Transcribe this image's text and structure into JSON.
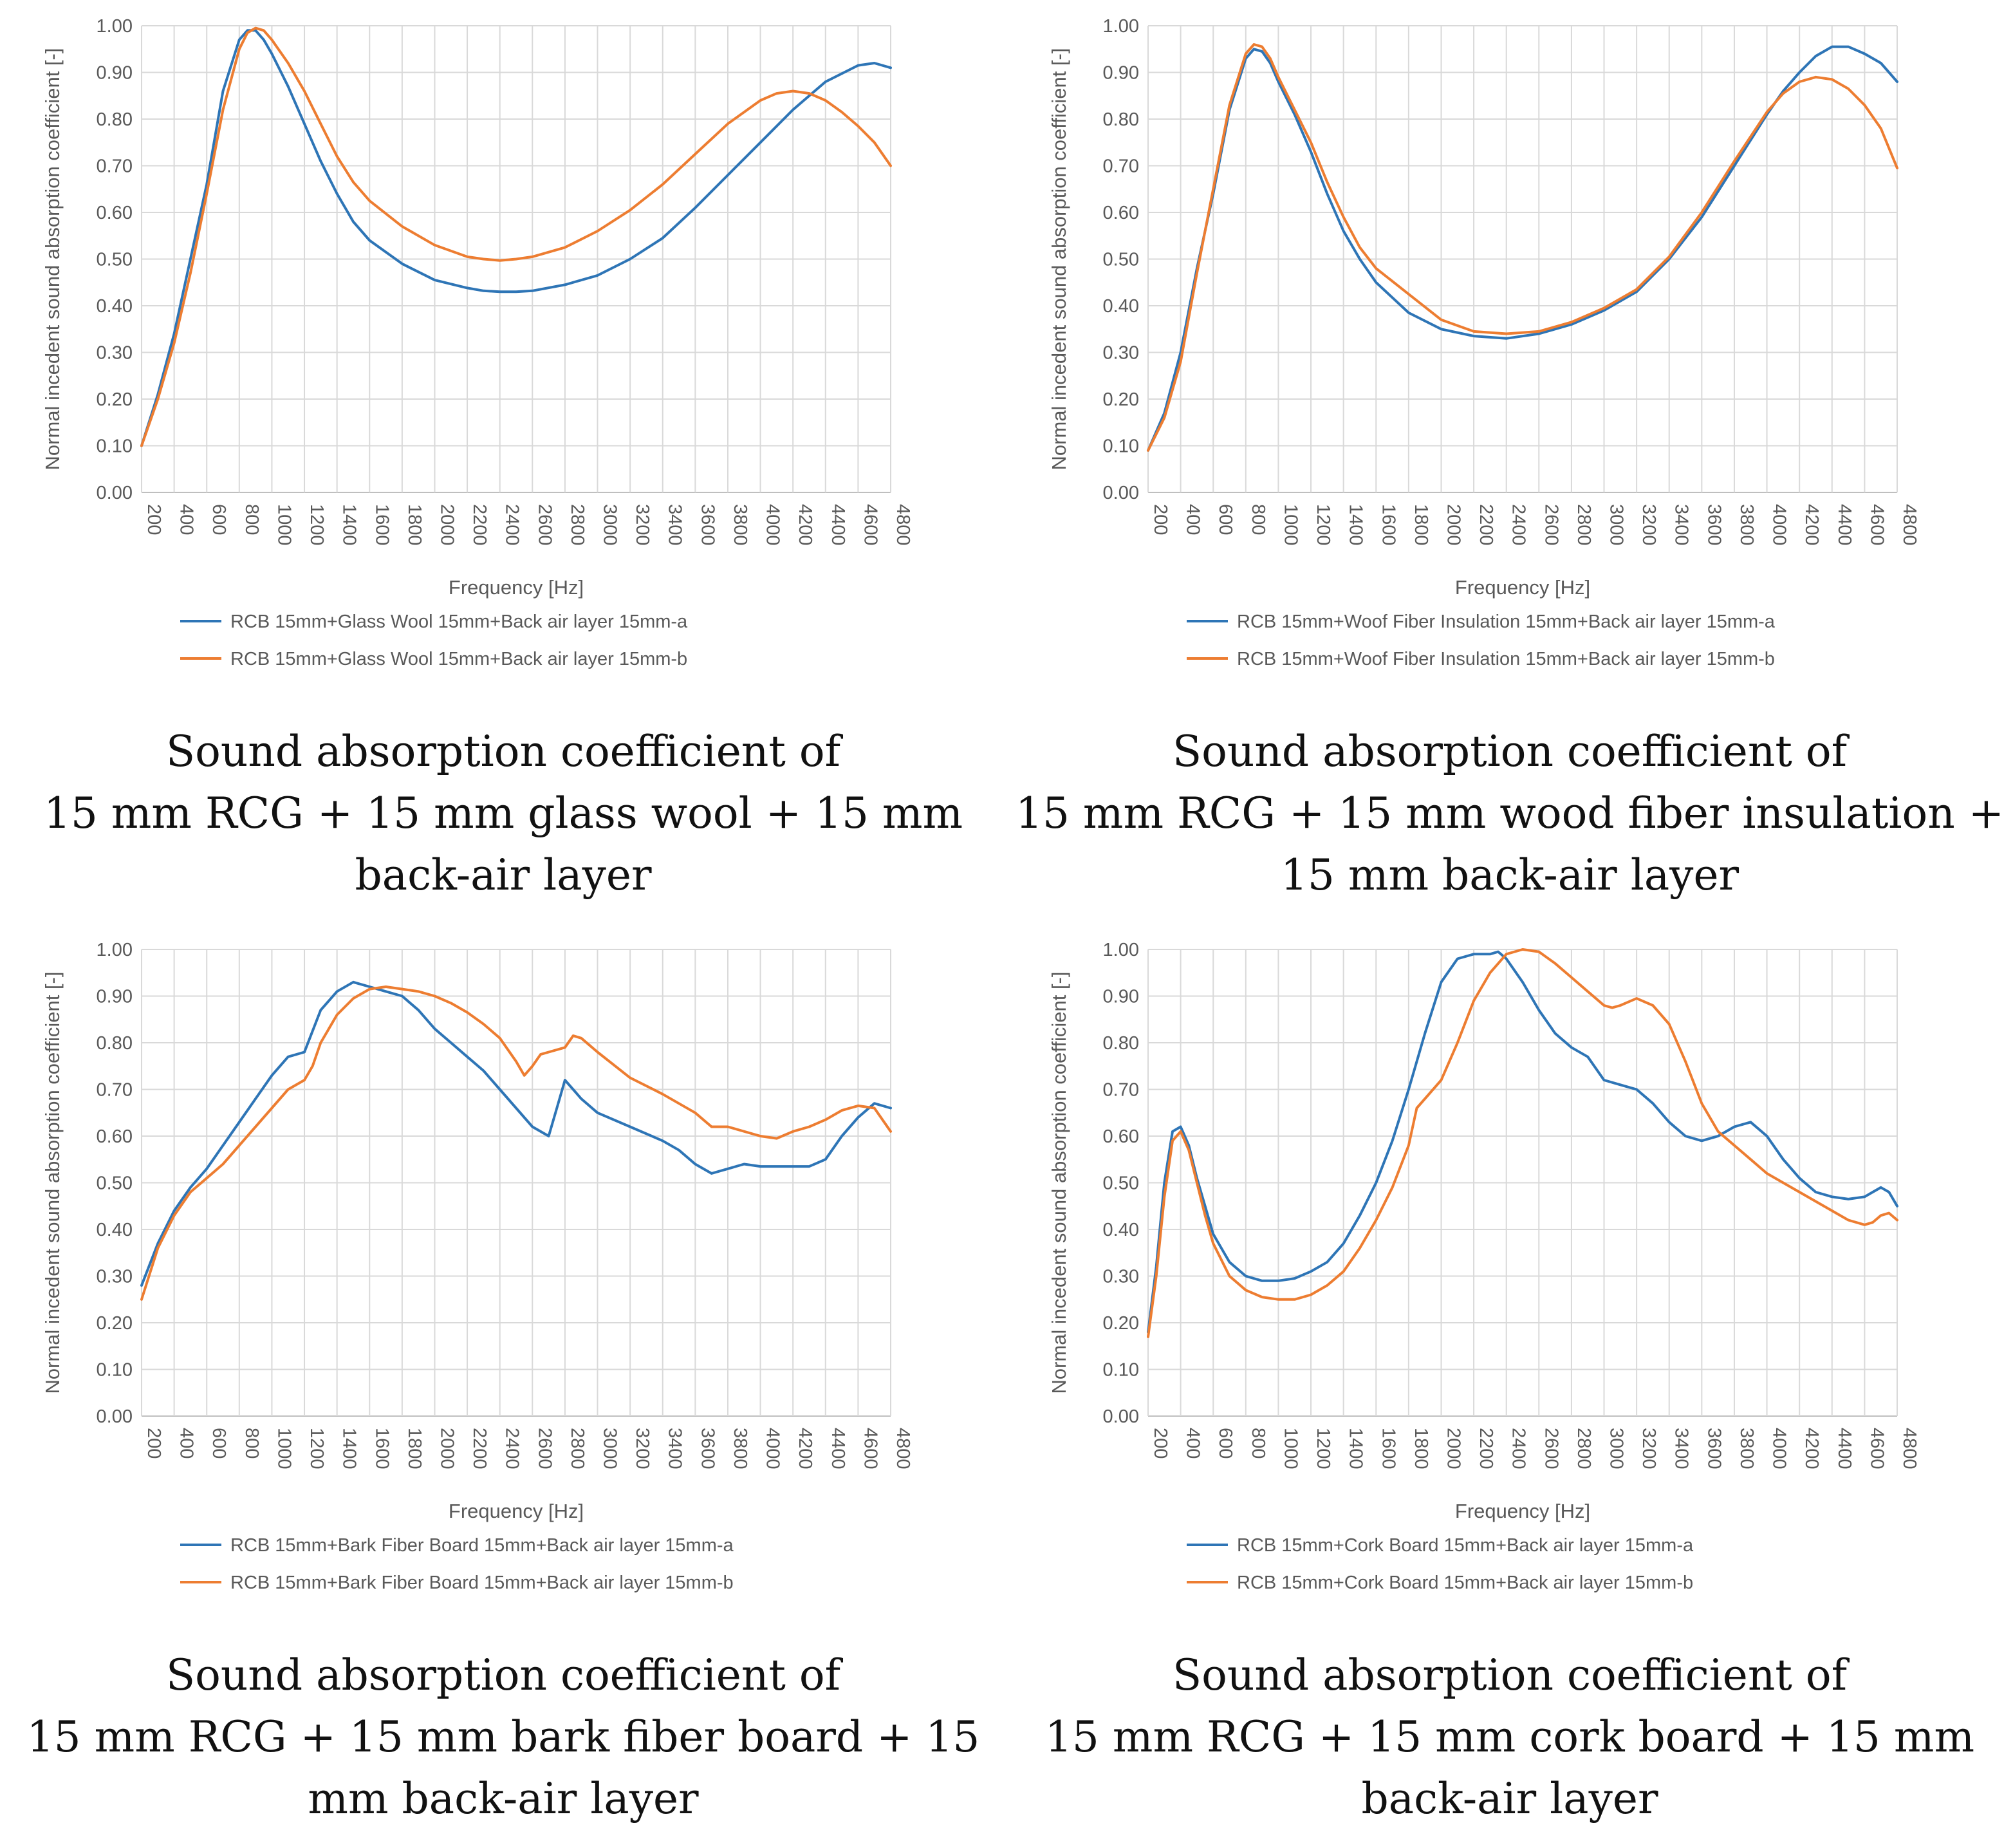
{
  "chart_data": [
    {
      "type": "line",
      "title": "Sound absorption coefficient of 15 mm RCG + 15 mm glass wool + 15 mm back-air layer",
      "caption_lines": [
        "Sound absorption coefficient of",
        "15 mm RCG + 15 mm glass wool + 15 mm",
        "back-air layer"
      ],
      "xlabel": "Frequency [Hz]",
      "ylabel": "Normal incedent sound absorption coefficient [-]",
      "xlim": [
        200,
        4800
      ],
      "ylim": [
        0,
        1
      ],
      "x_ticks": [
        "200",
        "400",
        "600",
        "800",
        "1000",
        "1200",
        "1400",
        "1600",
        "1800",
        "2000",
        "2200",
        "2400",
        "2600",
        "2800",
        "3000",
        "3200",
        "3400",
        "3600",
        "3800",
        "4000",
        "4200",
        "4400",
        "4600",
        "4800"
      ],
      "y_ticks": [
        "0.00",
        "0.10",
        "0.20",
        "0.30",
        "0.40",
        "0.50",
        "0.60",
        "0.70",
        "0.80",
        "0.90",
        "1.00"
      ],
      "legend_position": "bottom",
      "series": [
        {
          "name": "RCB 15mm+Glass Wool 15mm+Back air layer 15mm-a",
          "color": "#2e75b6",
          "x": [
            200,
            300,
            400,
            500,
            600,
            700,
            800,
            850,
            900,
            950,
            1000,
            1100,
            1200,
            1300,
            1400,
            1500,
            1600,
            1800,
            2000,
            2200,
            2300,
            2400,
            2500,
            2600,
            2800,
            3000,
            3200,
            3400,
            3600,
            3800,
            4000,
            4200,
            4400,
            4600,
            4700,
            4800
          ],
          "y": [
            0.1,
            0.21,
            0.34,
            0.5,
            0.66,
            0.86,
            0.97,
            0.99,
            0.99,
            0.97,
            0.94,
            0.87,
            0.79,
            0.71,
            0.64,
            0.58,
            0.54,
            0.49,
            0.455,
            0.438,
            0.432,
            0.43,
            0.43,
            0.432,
            0.445,
            0.465,
            0.5,
            0.545,
            0.61,
            0.68,
            0.75,
            0.82,
            0.88,
            0.915,
            0.92,
            0.91
          ]
        },
        {
          "name": "RCB 15mm+Glass Wool 15mm+Back air layer 15mm-b",
          "color": "#ed7d31",
          "x": [
            200,
            300,
            400,
            500,
            600,
            700,
            800,
            850,
            900,
            950,
            1000,
            1100,
            1200,
            1300,
            1400,
            1500,
            1600,
            1800,
            2000,
            2200,
            2300,
            2400,
            2500,
            2600,
            2800,
            3000,
            3200,
            3400,
            3600,
            3800,
            4000,
            4100,
            4200,
            4300,
            4400,
            4500,
            4600,
            4700,
            4800
          ],
          "y": [
            0.1,
            0.2,
            0.32,
            0.47,
            0.64,
            0.82,
            0.95,
            0.985,
            0.995,
            0.99,
            0.97,
            0.92,
            0.86,
            0.79,
            0.72,
            0.665,
            0.625,
            0.57,
            0.53,
            0.505,
            0.5,
            0.497,
            0.5,
            0.505,
            0.525,
            0.56,
            0.605,
            0.66,
            0.725,
            0.79,
            0.84,
            0.855,
            0.86,
            0.855,
            0.84,
            0.815,
            0.785,
            0.75,
            0.7
          ]
        }
      ]
    },
    {
      "type": "line",
      "title": "Sound absorption coefficient of 15 mm RCG + 15 mm wood fiber insulation + 15 mm back-air layer",
      "caption_lines": [
        "Sound absorption coefficient of",
        "15 mm RCG + 15 mm wood fiber insulation +",
        "15 mm back-air layer"
      ],
      "xlabel": "Frequency [Hz]",
      "ylabel": "Normal incedent sound absorption coefficient [-]",
      "xlim": [
        200,
        4800
      ],
      "ylim": [
        0,
        1
      ],
      "x_ticks": [
        "200",
        "400",
        "600",
        "800",
        "1000",
        "1200",
        "1400",
        "1600",
        "1800",
        "2000",
        "2200",
        "2400",
        "2600",
        "2800",
        "3000",
        "3200",
        "3400",
        "3600",
        "3800",
        "4000",
        "4200",
        "4400",
        "4600",
        "4800"
      ],
      "y_ticks": [
        "0.00",
        "0.10",
        "0.20",
        "0.30",
        "0.40",
        "0.50",
        "0.60",
        "0.70",
        "0.80",
        "0.90",
        "1.00"
      ],
      "legend_position": "bottom",
      "series": [
        {
          "name": "RCB 15mm+Woof Fiber Insulation 15mm+Back air layer 15mm-a",
          "color": "#2e75b6",
          "x": [
            200,
            300,
            400,
            500,
            600,
            700,
            800,
            850,
            900,
            950,
            1000,
            1100,
            1200,
            1300,
            1400,
            1500,
            1600,
            1800,
            2000,
            2200,
            2400,
            2600,
            2800,
            3000,
            3200,
            3400,
            3600,
            3800,
            4000,
            4100,
            4200,
            4300,
            4400,
            4500,
            4600,
            4700,
            4800
          ],
          "y": [
            0.09,
            0.17,
            0.3,
            0.48,
            0.64,
            0.82,
            0.93,
            0.95,
            0.945,
            0.92,
            0.88,
            0.81,
            0.73,
            0.64,
            0.56,
            0.5,
            0.45,
            0.385,
            0.35,
            0.335,
            0.33,
            0.34,
            0.36,
            0.39,
            0.43,
            0.5,
            0.59,
            0.7,
            0.81,
            0.86,
            0.9,
            0.935,
            0.955,
            0.955,
            0.94,
            0.92,
            0.88
          ]
        },
        {
          "name": "RCB 15mm+Woof Fiber Insulation 15mm+Back air layer 15mm-b",
          "color": "#ed7d31",
          "x": [
            200,
            300,
            400,
            500,
            600,
            700,
            800,
            850,
            900,
            950,
            1000,
            1100,
            1200,
            1300,
            1400,
            1500,
            1600,
            1800,
            2000,
            2200,
            2400,
            2600,
            2800,
            3000,
            3200,
            3400,
            3600,
            3800,
            4000,
            4100,
            4200,
            4300,
            4400,
            4500,
            4600,
            4700,
            4800
          ],
          "y": [
            0.09,
            0.16,
            0.28,
            0.47,
            0.65,
            0.83,
            0.94,
            0.96,
            0.955,
            0.93,
            0.89,
            0.82,
            0.75,
            0.665,
            0.59,
            0.525,
            0.48,
            0.425,
            0.37,
            0.345,
            0.34,
            0.345,
            0.365,
            0.395,
            0.435,
            0.505,
            0.6,
            0.71,
            0.815,
            0.855,
            0.88,
            0.89,
            0.885,
            0.865,
            0.83,
            0.78,
            0.695
          ]
        }
      ]
    },
    {
      "type": "line",
      "title": "Sound absorption coefficient of 15 mm RCG + 15 mm bark fiber board + 15 mm back-air layer",
      "caption_lines": [
        "Sound absorption coefficient of",
        "15 mm RCG + 15 mm bark fiber board + 15",
        "mm back-air layer"
      ],
      "xlabel": "Frequency [Hz]",
      "ylabel": "Normal incedent sound absorption coefficient [-]",
      "xlim": [
        200,
        4800
      ],
      "ylim": [
        0,
        1
      ],
      "x_ticks": [
        "200",
        "400",
        "600",
        "800",
        "1000",
        "1200",
        "1400",
        "1600",
        "1800",
        "2000",
        "2200",
        "2400",
        "2600",
        "2800",
        "3000",
        "3200",
        "3400",
        "3600",
        "3800",
        "4000",
        "4200",
        "4400",
        "4600",
        "4800"
      ],
      "y_ticks": [
        "0.00",
        "0.10",
        "0.20",
        "0.30",
        "0.40",
        "0.50",
        "0.60",
        "0.70",
        "0.80",
        "0.90",
        "1.00"
      ],
      "legend_position": "bottom",
      "series": [
        {
          "name": "RCB 15mm+Bark Fiber Board 15mm+Back air layer 15mm-a",
          "color": "#2e75b6",
          "x": [
            200,
            300,
            400,
            500,
            600,
            700,
            800,
            900,
            1000,
            1100,
            1200,
            1300,
            1400,
            1500,
            1600,
            1700,
            1800,
            1900,
            2000,
            2100,
            2200,
            2300,
            2400,
            2500,
            2600,
            2700,
            2750,
            2800,
            2850,
            2900,
            3000,
            3200,
            3400,
            3500,
            3600,
            3700,
            3800,
            3900,
            4000,
            4100,
            4200,
            4300,
            4400,
            4500,
            4600,
            4700,
            4800
          ],
          "y": [
            0.28,
            0.37,
            0.44,
            0.49,
            0.53,
            0.58,
            0.63,
            0.68,
            0.73,
            0.77,
            0.78,
            0.87,
            0.91,
            0.93,
            0.92,
            0.91,
            0.9,
            0.87,
            0.83,
            0.8,
            0.77,
            0.74,
            0.7,
            0.66,
            0.62,
            0.6,
            0.66,
            0.72,
            0.7,
            0.68,
            0.65,
            0.62,
            0.59,
            0.57,
            0.54,
            0.52,
            0.53,
            0.54,
            0.535,
            0.535,
            0.535,
            0.535,
            0.55,
            0.6,
            0.64,
            0.67,
            0.66
          ]
        },
        {
          "name": "RCB 15mm+Bark Fiber Board 15mm+Back air layer 15mm-b",
          "color": "#ed7d31",
          "x": [
            200,
            300,
            400,
            500,
            600,
            700,
            800,
            900,
            1000,
            1100,
            1200,
            1250,
            1300,
            1400,
            1500,
            1600,
            1700,
            1800,
            1900,
            2000,
            2100,
            2200,
            2300,
            2400,
            2500,
            2550,
            2600,
            2650,
            2700,
            2800,
            2850,
            2900,
            3000,
            3200,
            3400,
            3600,
            3700,
            3800,
            4000,
            4100,
            4200,
            4300,
            4400,
            4500,
            4600,
            4700,
            4800
          ],
          "y": [
            0.25,
            0.36,
            0.43,
            0.48,
            0.51,
            0.54,
            0.58,
            0.62,
            0.66,
            0.7,
            0.72,
            0.75,
            0.8,
            0.86,
            0.895,
            0.915,
            0.92,
            0.915,
            0.91,
            0.9,
            0.885,
            0.865,
            0.84,
            0.81,
            0.76,
            0.73,
            0.75,
            0.775,
            0.78,
            0.79,
            0.815,
            0.81,
            0.78,
            0.725,
            0.69,
            0.65,
            0.62,
            0.62,
            0.6,
            0.595,
            0.61,
            0.62,
            0.635,
            0.655,
            0.665,
            0.66,
            0.61
          ]
        }
      ]
    },
    {
      "type": "line",
      "title": "Sound absorption coefficient of 15 mm RCG + 15 mm cork board + 15 mm back-air layer",
      "caption_lines": [
        "Sound absorption coefficient of",
        "15 mm RCG + 15 mm cork board + 15 mm",
        "back-air layer"
      ],
      "xlabel": "Frequency [Hz]",
      "ylabel": "Normal incedent sound absorption coefficient [-]",
      "xlim": [
        200,
        4800
      ],
      "ylim": [
        0,
        1
      ],
      "x_ticks": [
        "200",
        "400",
        "600",
        "800",
        "1000",
        "1200",
        "1400",
        "1600",
        "1800",
        "2000",
        "2200",
        "2400",
        "2600",
        "2800",
        "3000",
        "3200",
        "3400",
        "3600",
        "3800",
        "4000",
        "4200",
        "4400",
        "4600",
        "4800"
      ],
      "y_ticks": [
        "0.00",
        "0.10",
        "0.20",
        "0.30",
        "0.40",
        "0.50",
        "0.60",
        "0.70",
        "0.80",
        "0.90",
        "1.00"
      ],
      "legend_position": "bottom",
      "series": [
        {
          "name": "RCB 15mm+Cork Board 15mm+Back air layer 15mm-a",
          "color": "#2e75b6",
          "x": [
            200,
            250,
            300,
            350,
            400,
            450,
            500,
            550,
            600,
            700,
            800,
            900,
            1000,
            1100,
            1200,
            1300,
            1400,
            1500,
            1600,
            1700,
            1800,
            1900,
            2000,
            2100,
            2200,
            2300,
            2350,
            2400,
            2500,
            2600,
            2700,
            2800,
            2900,
            3000,
            3100,
            3200,
            3300,
            3400,
            3500,
            3600,
            3700,
            3800,
            3900,
            4000,
            4100,
            4200,
            4300,
            4400,
            4500,
            4600,
            4650,
            4700,
            4750,
            4800
          ],
          "y": [
            0.18,
            0.32,
            0.5,
            0.61,
            0.62,
            0.58,
            0.51,
            0.45,
            0.39,
            0.33,
            0.3,
            0.29,
            0.29,
            0.295,
            0.31,
            0.33,
            0.37,
            0.43,
            0.5,
            0.59,
            0.7,
            0.82,
            0.93,
            0.98,
            0.99,
            0.99,
            0.995,
            0.98,
            0.93,
            0.87,
            0.82,
            0.79,
            0.77,
            0.72,
            0.71,
            0.7,
            0.67,
            0.63,
            0.6,
            0.59,
            0.6,
            0.62,
            0.63,
            0.6,
            0.55,
            0.51,
            0.48,
            0.47,
            0.465,
            0.47,
            0.48,
            0.49,
            0.48,
            0.45
          ]
        },
        {
          "name": "RCB 15mm+Cork Board 15mm+Back air layer 15mm-b",
          "color": "#ed7d31",
          "x": [
            200,
            250,
            300,
            350,
            400,
            450,
            500,
            550,
            600,
            700,
            800,
            900,
            1000,
            1100,
            1200,
            1300,
            1400,
            1500,
            1600,
            1700,
            1800,
            1850,
            1900,
            2000,
            2100,
            2200,
            2300,
            2400,
            2500,
            2600,
            2700,
            2800,
            2900,
            3000,
            3050,
            3100,
            3200,
            3300,
            3400,
            3500,
            3600,
            3700,
            3800,
            3900,
            4000,
            4100,
            4200,
            4300,
            4400,
            4500,
            4600,
            4650,
            4700,
            4750,
            4800
          ],
          "y": [
            0.17,
            0.3,
            0.47,
            0.59,
            0.61,
            0.57,
            0.5,
            0.43,
            0.37,
            0.3,
            0.27,
            0.255,
            0.25,
            0.25,
            0.26,
            0.28,
            0.31,
            0.36,
            0.42,
            0.49,
            0.58,
            0.66,
            0.68,
            0.72,
            0.8,
            0.89,
            0.95,
            0.99,
            1.0,
            0.995,
            0.97,
            0.94,
            0.91,
            0.88,
            0.875,
            0.88,
            0.895,
            0.88,
            0.84,
            0.76,
            0.67,
            0.61,
            0.58,
            0.55,
            0.52,
            0.5,
            0.48,
            0.46,
            0.44,
            0.42,
            0.41,
            0.415,
            0.43,
            0.435,
            0.42
          ]
        }
      ]
    }
  ]
}
